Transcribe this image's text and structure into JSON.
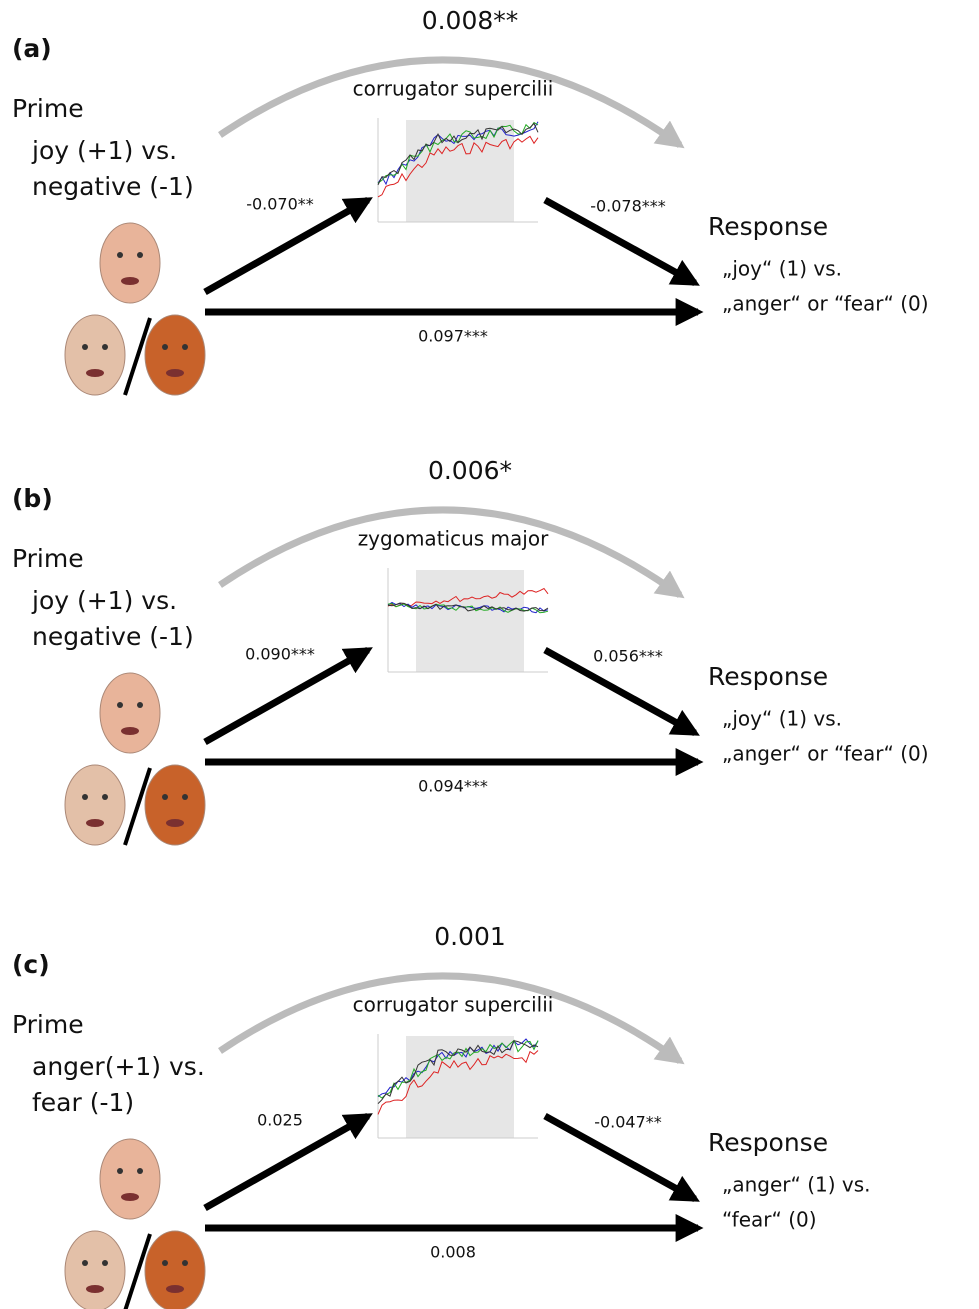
{
  "panels": [
    {
      "label": "(a)",
      "indirect": "0.008**",
      "muscle": "corrugator supercilii",
      "prime_title": "Prime",
      "prime_lines": [
        "joy (+1) vs.",
        "negative (-1)"
      ],
      "path_a": "-0.070**",
      "path_b": "-0.078***",
      "direct": "0.097***",
      "response_title": "Response",
      "response_lines": [
        "„joy“ (1) vs.",
        "„anger“ or “fear“ (0)"
      ]
    },
    {
      "label": "(b)",
      "indirect": "0.006*",
      "muscle": "zygomaticus major",
      "prime_title": "Prime",
      "prime_lines": [
        "joy (+1) vs.",
        "negative (-1)"
      ],
      "path_a": "0.090***",
      "path_b": "0.056***",
      "direct": "0.094***",
      "response_title": "Response",
      "response_lines": [
        "„joy“ (1) vs.",
        "„anger“ or “fear“ (0)"
      ]
    },
    {
      "label": "(c)",
      "indirect": "0.001",
      "muscle": "corrugator supercilii",
      "prime_title": "Prime",
      "prime_lines": [
        "anger(+1) vs.",
        "fear (-1)"
      ],
      "path_a": "0.025",
      "path_b": "-0.047**",
      "direct": "0.008",
      "response_title": "Response",
      "response_lines": [
        "„anger“ (1) vs.",
        "“fear“ (0)"
      ]
    }
  ]
}
